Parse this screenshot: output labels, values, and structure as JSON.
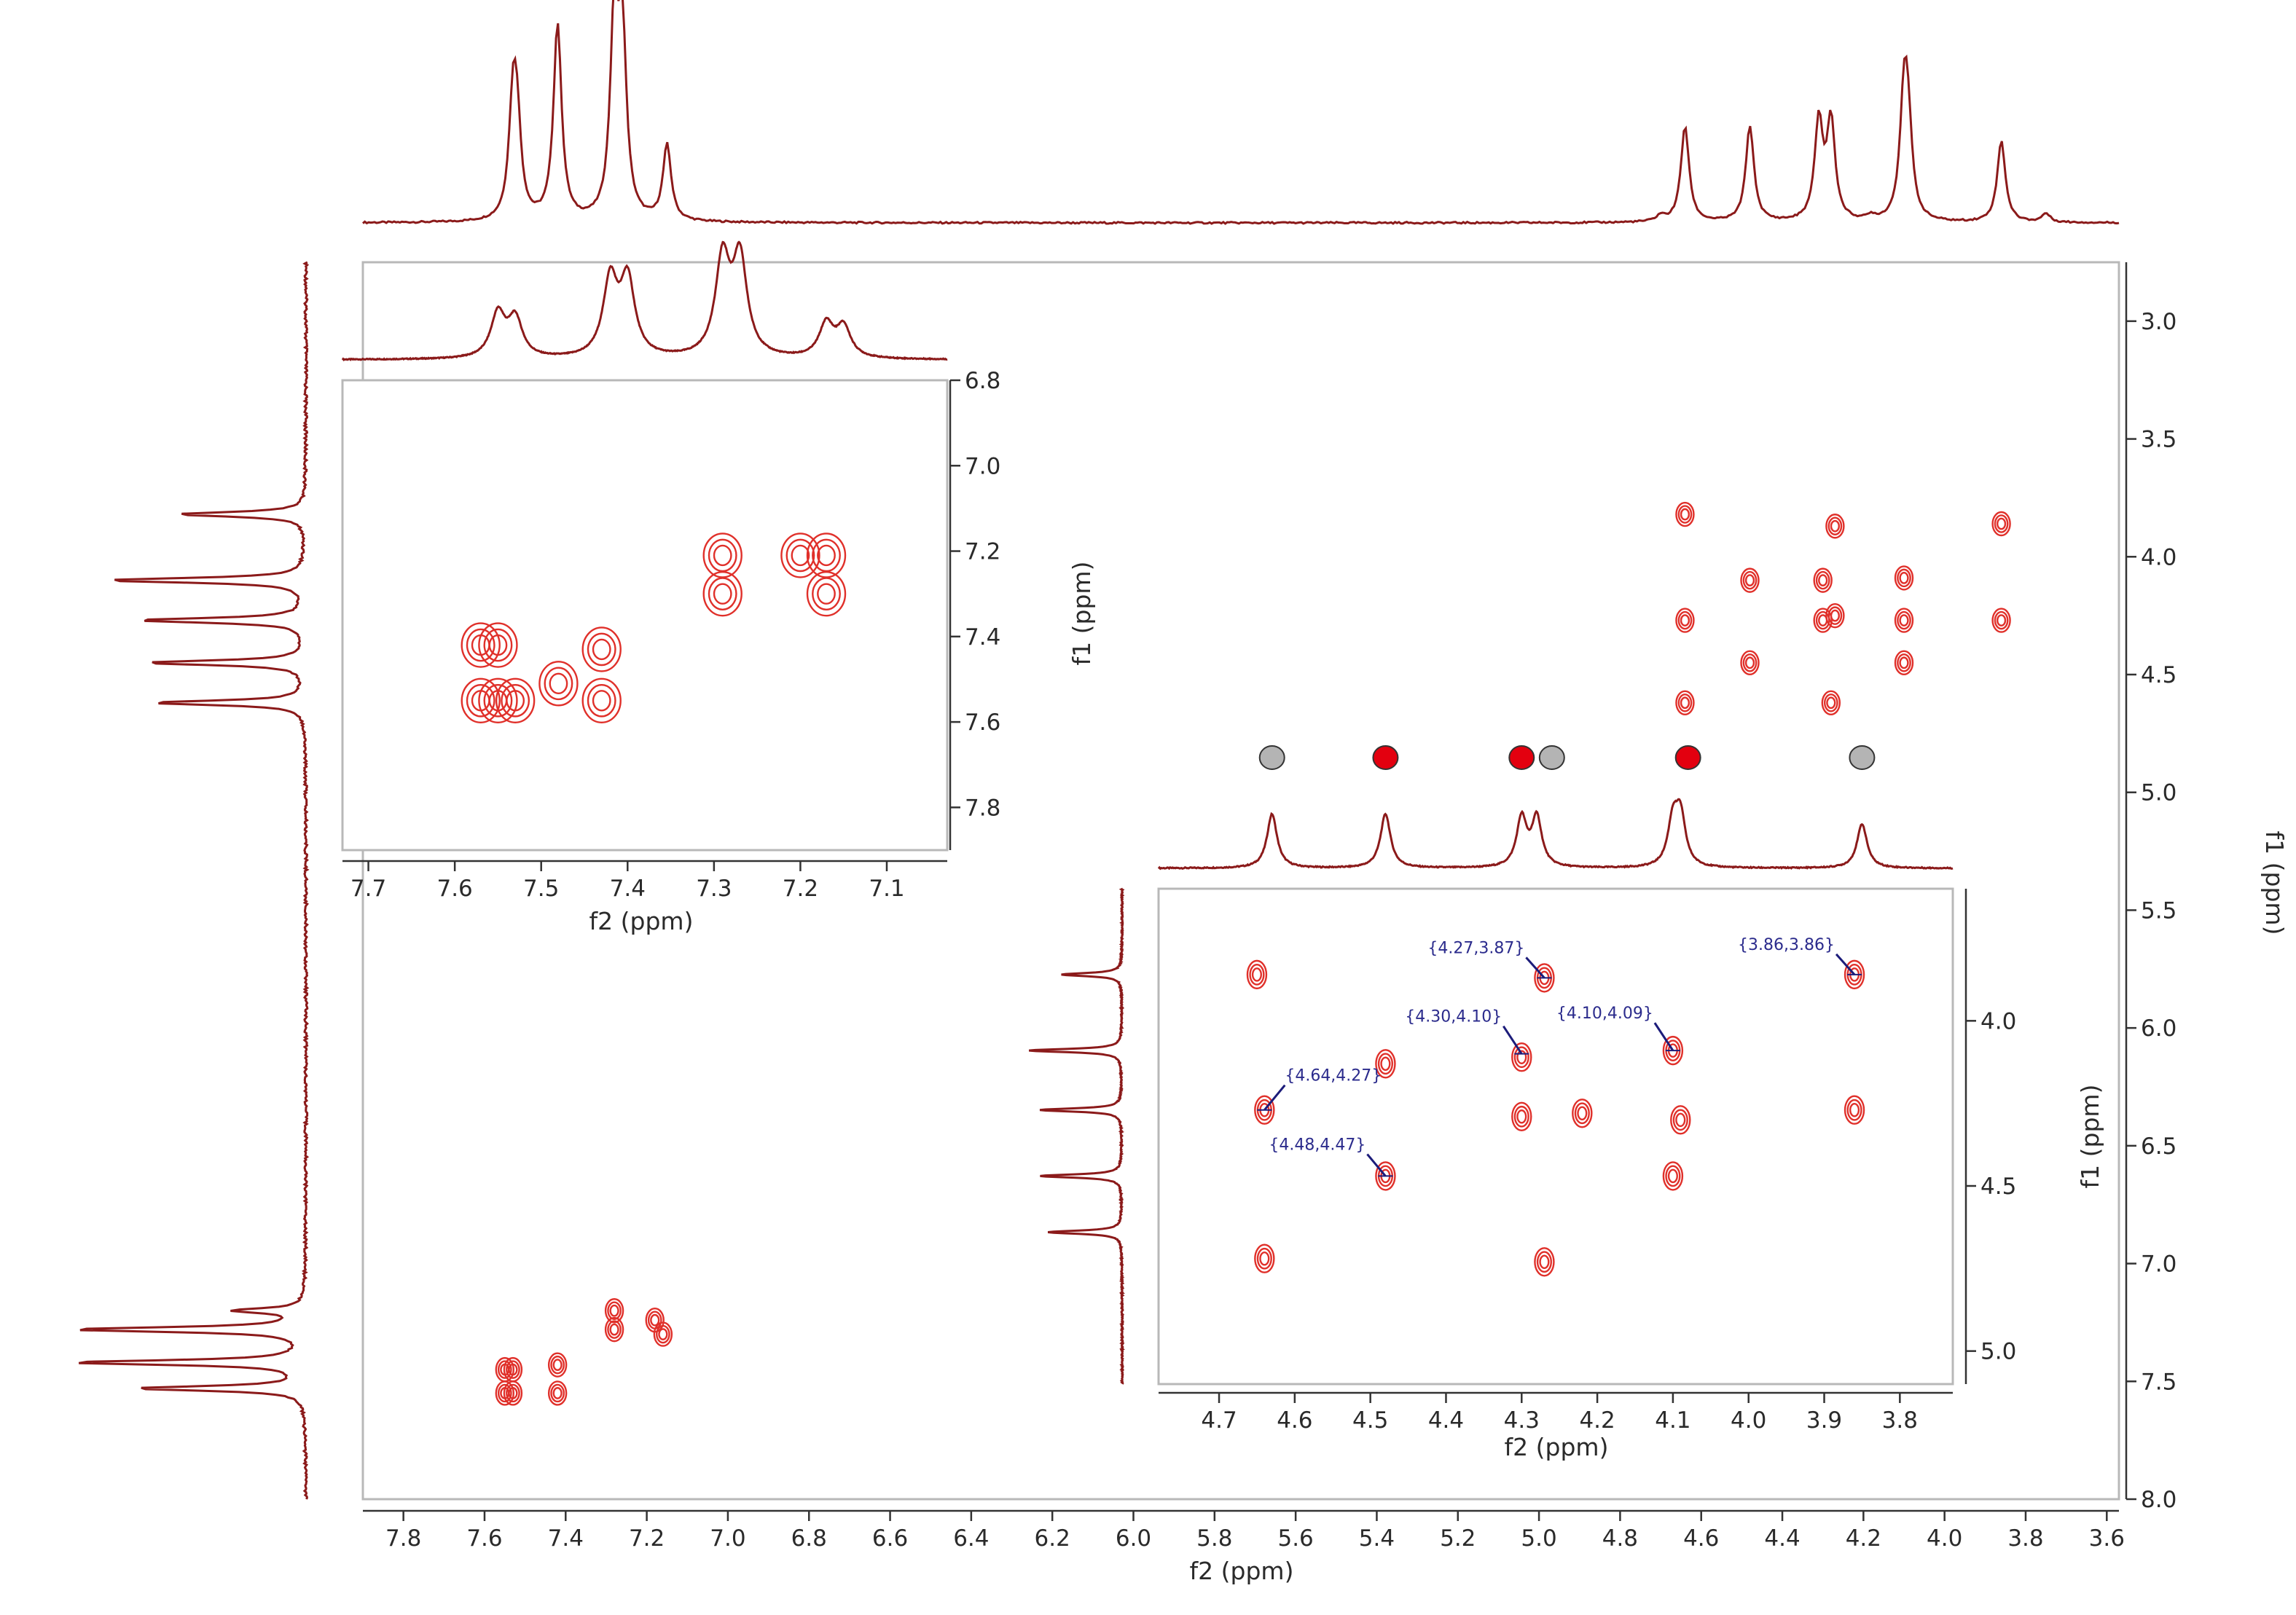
{
  "colors": {
    "trace": "#8b1a1a",
    "contour": "#e0302a",
    "frame": "#b8b8b8",
    "annotation": "#1c1c7a",
    "marker_red": "#e3000f",
    "marker_gray": "#b4b4b4"
  },
  "chart_data": [
    {
      "type": "heatmap",
      "name": "main-cosy",
      "xlabel": "f2 (ppm)",
      "ylabel": "f1 (ppm)",
      "xlim": [
        7.9,
        3.57
      ],
      "ylim": [
        2.75,
        8.0
      ],
      "x_ticks": [
        "7.8",
        "7.6",
        "7.4",
        "7.2",
        "7.0",
        "6.8",
        "6.6",
        "6.4",
        "6.2",
        "6.0",
        "5.8",
        "5.6",
        "5.4",
        "5.2",
        "5.0",
        "4.8",
        "4.6",
        "4.4",
        "4.2",
        "4.0",
        "3.8",
        "3.6"
      ],
      "y_ticks": [
        "3.0",
        "3.5",
        "4.0",
        "4.5",
        "5.0",
        "5.5",
        "6.0",
        "6.5",
        "7.0",
        "7.5",
        "8.0"
      ],
      "cross_peaks": [
        {
          "x": 7.55,
          "y": 7.45
        },
        {
          "x": 7.55,
          "y": 7.55
        },
        {
          "x": 7.53,
          "y": 7.45
        },
        {
          "x": 7.53,
          "y": 7.55
        },
        {
          "x": 7.42,
          "y": 7.43
        },
        {
          "x": 7.42,
          "y": 7.55
        },
        {
          "x": 7.28,
          "y": 7.2
        },
        {
          "x": 7.28,
          "y": 7.28
        },
        {
          "x": 7.18,
          "y": 7.24
        },
        {
          "x": 7.16,
          "y": 7.3
        },
        {
          "x": 4.64,
          "y": 3.82
        },
        {
          "x": 4.64,
          "y": 4.27
        },
        {
          "x": 4.64,
          "y": 4.62
        },
        {
          "x": 4.48,
          "y": 4.1
        },
        {
          "x": 4.48,
          "y": 4.45
        },
        {
          "x": 4.3,
          "y": 4.1
        },
        {
          "x": 4.3,
          "y": 4.27
        },
        {
          "x": 4.28,
          "y": 4.62
        },
        {
          "x": 4.27,
          "y": 3.87
        },
        {
          "x": 4.27,
          "y": 4.25
        },
        {
          "x": 4.1,
          "y": 4.09
        },
        {
          "x": 4.1,
          "y": 4.27
        },
        {
          "x": 4.1,
          "y": 4.45
        },
        {
          "x": 3.86,
          "y": 3.86
        },
        {
          "x": 3.86,
          "y": 4.27
        }
      ],
      "projection_peaks_x": [
        {
          "x": 7.53,
          "h": 0.72
        },
        {
          "x": 7.52,
          "h": 0.58
        },
        {
          "x": 7.42,
          "h": 1.35
        },
        {
          "x": 7.28,
          "h": 1.35
        },
        {
          "x": 7.26,
          "h": 1.2
        },
        {
          "x": 7.15,
          "h": 0.52
        },
        {
          "x": 4.64,
          "h": 0.66
        },
        {
          "x": 4.48,
          "h": 0.66
        },
        {
          "x": 4.31,
          "h": 0.68
        },
        {
          "x": 4.28,
          "h": 0.68
        },
        {
          "x": 4.1,
          "h": 0.78
        },
        {
          "x": 4.09,
          "h": 0.55
        },
        {
          "x": 3.86,
          "h": 0.56
        },
        {
          "x": 4.18,
          "h": 0.03
        },
        {
          "x": 4.7,
          "h": 0.04
        },
        {
          "x": 3.75,
          "h": 0.06
        }
      ],
      "projection_peaks_y": [
        {
          "y": 3.82,
          "h": 0.55
        },
        {
          "y": 4.1,
          "h": 0.85
        },
        {
          "y": 4.27,
          "h": 0.72
        },
        {
          "y": 4.45,
          "h": 0.68
        },
        {
          "y": 4.62,
          "h": 0.65
        },
        {
          "y": 7.2,
          "h": 0.3
        },
        {
          "y": 7.28,
          "h": 1.0
        },
        {
          "y": 7.42,
          "h": 1.0
        },
        {
          "y": 7.53,
          "h": 0.72
        }
      ]
    },
    {
      "type": "heatmap",
      "name": "aromatic-inset",
      "xlabel": "f2 (ppm)",
      "ylabel": "f1 (ppm)",
      "xlim": [
        7.73,
        7.03
      ],
      "ylim": [
        6.8,
        7.9
      ],
      "x_ticks": [
        "7.7",
        "7.6",
        "7.5",
        "7.4",
        "7.3",
        "7.2",
        "7.1"
      ],
      "y_ticks": [
        "6.8",
        "7.0",
        "7.2",
        "7.4",
        "7.6",
        "7.8"
      ],
      "cross_peaks": [
        {
          "x": 7.57,
          "y": 7.42
        },
        {
          "x": 7.55,
          "y": 7.42
        },
        {
          "x": 7.57,
          "y": 7.55
        },
        {
          "x": 7.55,
          "y": 7.55
        },
        {
          "x": 7.53,
          "y": 7.55
        },
        {
          "x": 7.48,
          "y": 7.51
        },
        {
          "x": 7.43,
          "y": 7.43
        },
        {
          "x": 7.43,
          "y": 7.55
        },
        {
          "x": 7.29,
          "y": 7.21
        },
        {
          "x": 7.29,
          "y": 7.3
        },
        {
          "x": 7.2,
          "y": 7.21
        },
        {
          "x": 7.17,
          "y": 7.3
        },
        {
          "x": 7.17,
          "y": 7.21
        }
      ],
      "projection_peaks_x": [
        {
          "x": 7.55,
          "h": 0.55
        },
        {
          "x": 7.53,
          "h": 0.48
        },
        {
          "x": 7.42,
          "h": 0.95
        },
        {
          "x": 7.4,
          "h": 0.95
        },
        {
          "x": 7.29,
          "h": 1.2
        },
        {
          "x": 7.27,
          "h": 1.2
        },
        {
          "x": 7.17,
          "h": 0.42
        },
        {
          "x": 7.15,
          "h": 0.38
        }
      ]
    },
    {
      "type": "heatmap",
      "name": "aliphatic-inset",
      "xlabel": "f2 (ppm)",
      "ylabel": "f1 (ppm)",
      "xlim": [
        4.78,
        3.73
      ],
      "ylim": [
        3.6,
        5.1
      ],
      "x_ticks": [
        "4.7",
        "4.6",
        "4.5",
        "4.4",
        "4.3",
        "4.2",
        "4.1",
        "4.0",
        "3.9",
        "3.8"
      ],
      "y_ticks": [
        "4.0",
        "4.5",
        "5.0"
      ],
      "cross_peaks": [
        {
          "x": 4.65,
          "y": 3.86
        },
        {
          "x": 4.64,
          "y": 4.27
        },
        {
          "x": 4.64,
          "y": 4.72
        },
        {
          "x": 4.48,
          "y": 4.13
        },
        {
          "x": 4.48,
          "y": 4.47
        },
        {
          "x": 4.3,
          "y": 4.11
        },
        {
          "x": 4.3,
          "y": 4.29
        },
        {
          "x": 4.27,
          "y": 3.87
        },
        {
          "x": 4.27,
          "y": 4.73
        },
        {
          "x": 4.22,
          "y": 4.28
        },
        {
          "x": 4.1,
          "y": 4.09
        },
        {
          "x": 4.09,
          "y": 4.3
        },
        {
          "x": 4.1,
          "y": 4.47
        },
        {
          "x": 3.86,
          "y": 3.86
        },
        {
          "x": 3.86,
          "y": 4.27
        }
      ],
      "annotations": [
        {
          "label": "{4.27,3.87}",
          "x": 4.27,
          "y": 3.87
        },
        {
          "label": "{3.86,3.86}",
          "x": 3.86,
          "y": 3.86
        },
        {
          "label": "{4.30,4.10}",
          "x": 4.3,
          "y": 4.1
        },
        {
          "label": "{4.10,4.09}",
          "x": 4.1,
          "y": 4.09
        },
        {
          "label": "{4.64,4.27}",
          "x": 4.64,
          "y": 4.27
        },
        {
          "label": "{4.48,4.47}",
          "x": 4.48,
          "y": 4.47
        }
      ],
      "markers": [
        {
          "x": 4.63,
          "color": "gray"
        },
        {
          "x": 4.48,
          "color": "red"
        },
        {
          "x": 4.3,
          "color": "red"
        },
        {
          "x": 4.26,
          "color": "gray"
        },
        {
          "x": 4.08,
          "color": "red"
        },
        {
          "x": 3.85,
          "color": "gray"
        }
      ],
      "projection_peaks_x": [
        {
          "x": 4.63,
          "h": 0.55
        },
        {
          "x": 4.48,
          "h": 0.55
        },
        {
          "x": 4.3,
          "h": 0.5
        },
        {
          "x": 4.28,
          "h": 0.5
        },
        {
          "x": 4.1,
          "h": 0.45
        },
        {
          "x": 4.09,
          "h": 0.5
        },
        {
          "x": 3.85,
          "h": 0.45
        }
      ],
      "projection_peaks_y": [
        {
          "y": 3.86,
          "h": 0.55
        },
        {
          "y": 4.09,
          "h": 0.85
        },
        {
          "y": 4.27,
          "h": 0.75
        },
        {
          "y": 4.47,
          "h": 0.75
        },
        {
          "y": 4.64,
          "h": 0.68
        }
      ]
    }
  ]
}
